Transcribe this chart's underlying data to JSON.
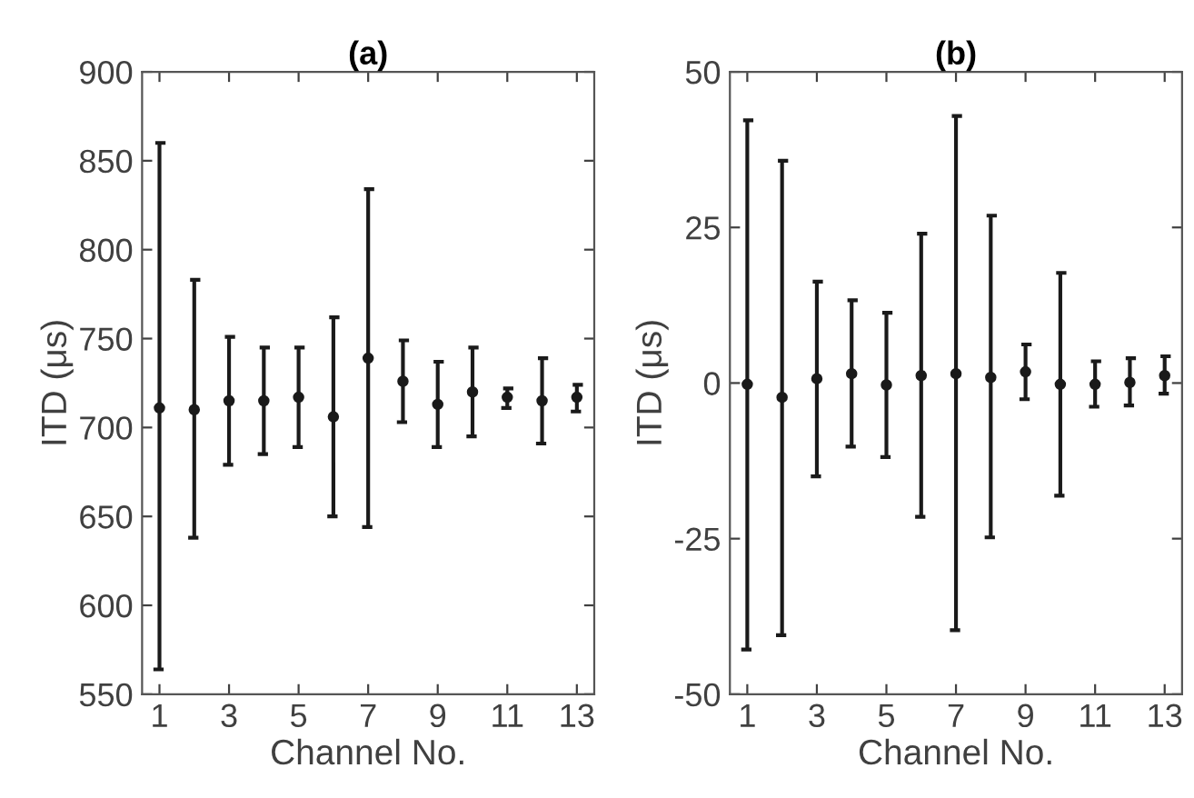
{
  "chart_data": [
    {
      "type": "scatter",
      "title": "(a)",
      "xlabel": "Channel No.",
      "ylabel": "ITD (μs)",
      "x": [
        1,
        2,
        3,
        4,
        5,
        6,
        7,
        8,
        9,
        10,
        11,
        12,
        13
      ],
      "series": [
        {
          "color": "#1a1a1a",
          "values": [
            711,
            710,
            715,
            715,
            717,
            706,
            739,
            726,
            713,
            720,
            717,
            715,
            717
          ],
          "errors": [
            [
              564,
              860
            ],
            [
              638,
              783
            ],
            [
              679,
              751
            ],
            [
              685,
              745
            ],
            [
              689,
              745
            ],
            [
              650,
              762
            ],
            [
              644,
              834
            ],
            [
              703,
              749
            ],
            [
              689,
              737
            ],
            [
              695,
              745
            ],
            [
              711,
              722
            ],
            [
              691,
              739
            ],
            [
              709,
              724
            ]
          ]
        }
      ],
      "xlim": [
        0.5,
        13.5
      ],
      "xticks": [
        1,
        3,
        5,
        7,
        9,
        11,
        13
      ],
      "ylim": [
        550,
        900
      ],
      "yticks": [
        550,
        600,
        650,
        700,
        750,
        800,
        850,
        900
      ],
      "marker": "circle",
      "grid": false
    },
    {
      "type": "scatter",
      "title": "(b)",
      "xlabel": "Channel No.",
      "ylabel": "ITD (μs)",
      "x": [
        1,
        2,
        3,
        4,
        5,
        6,
        7,
        8,
        9,
        10,
        11,
        12,
        13
      ],
      "series": [
        {
          "color": "#1a1a1a",
          "values": [
            -0.2,
            -2.3,
            0.7,
            1.5,
            -0.3,
            1.2,
            1.5,
            0.9,
            1.8,
            -0.2,
            -0.2,
            0.1,
            1.2
          ],
          "errors": [
            [
              -42.8,
              42.2
            ],
            [
              -40.5,
              35.7
            ],
            [
              -15.0,
              16.3
            ],
            [
              -10.2,
              13.3
            ],
            [
              -11.9,
              11.3
            ],
            [
              -21.5,
              24.0
            ],
            [
              -39.7,
              42.9
            ],
            [
              -24.8,
              26.9
            ],
            [
              -2.6,
              6.2
            ],
            [
              -18.1,
              17.7
            ],
            [
              -3.8,
              3.5
            ],
            [
              -3.6,
              4.0
            ],
            [
              -1.7,
              4.3
            ]
          ]
        }
      ],
      "xlim": [
        0.5,
        13.5
      ],
      "xticks": [
        1,
        3,
        5,
        7,
        9,
        11,
        13
      ],
      "ylim": [
        -50,
        50
      ],
      "yticks": [
        -50,
        -25,
        0,
        25,
        50
      ],
      "marker": "circle",
      "grid": false
    }
  ]
}
